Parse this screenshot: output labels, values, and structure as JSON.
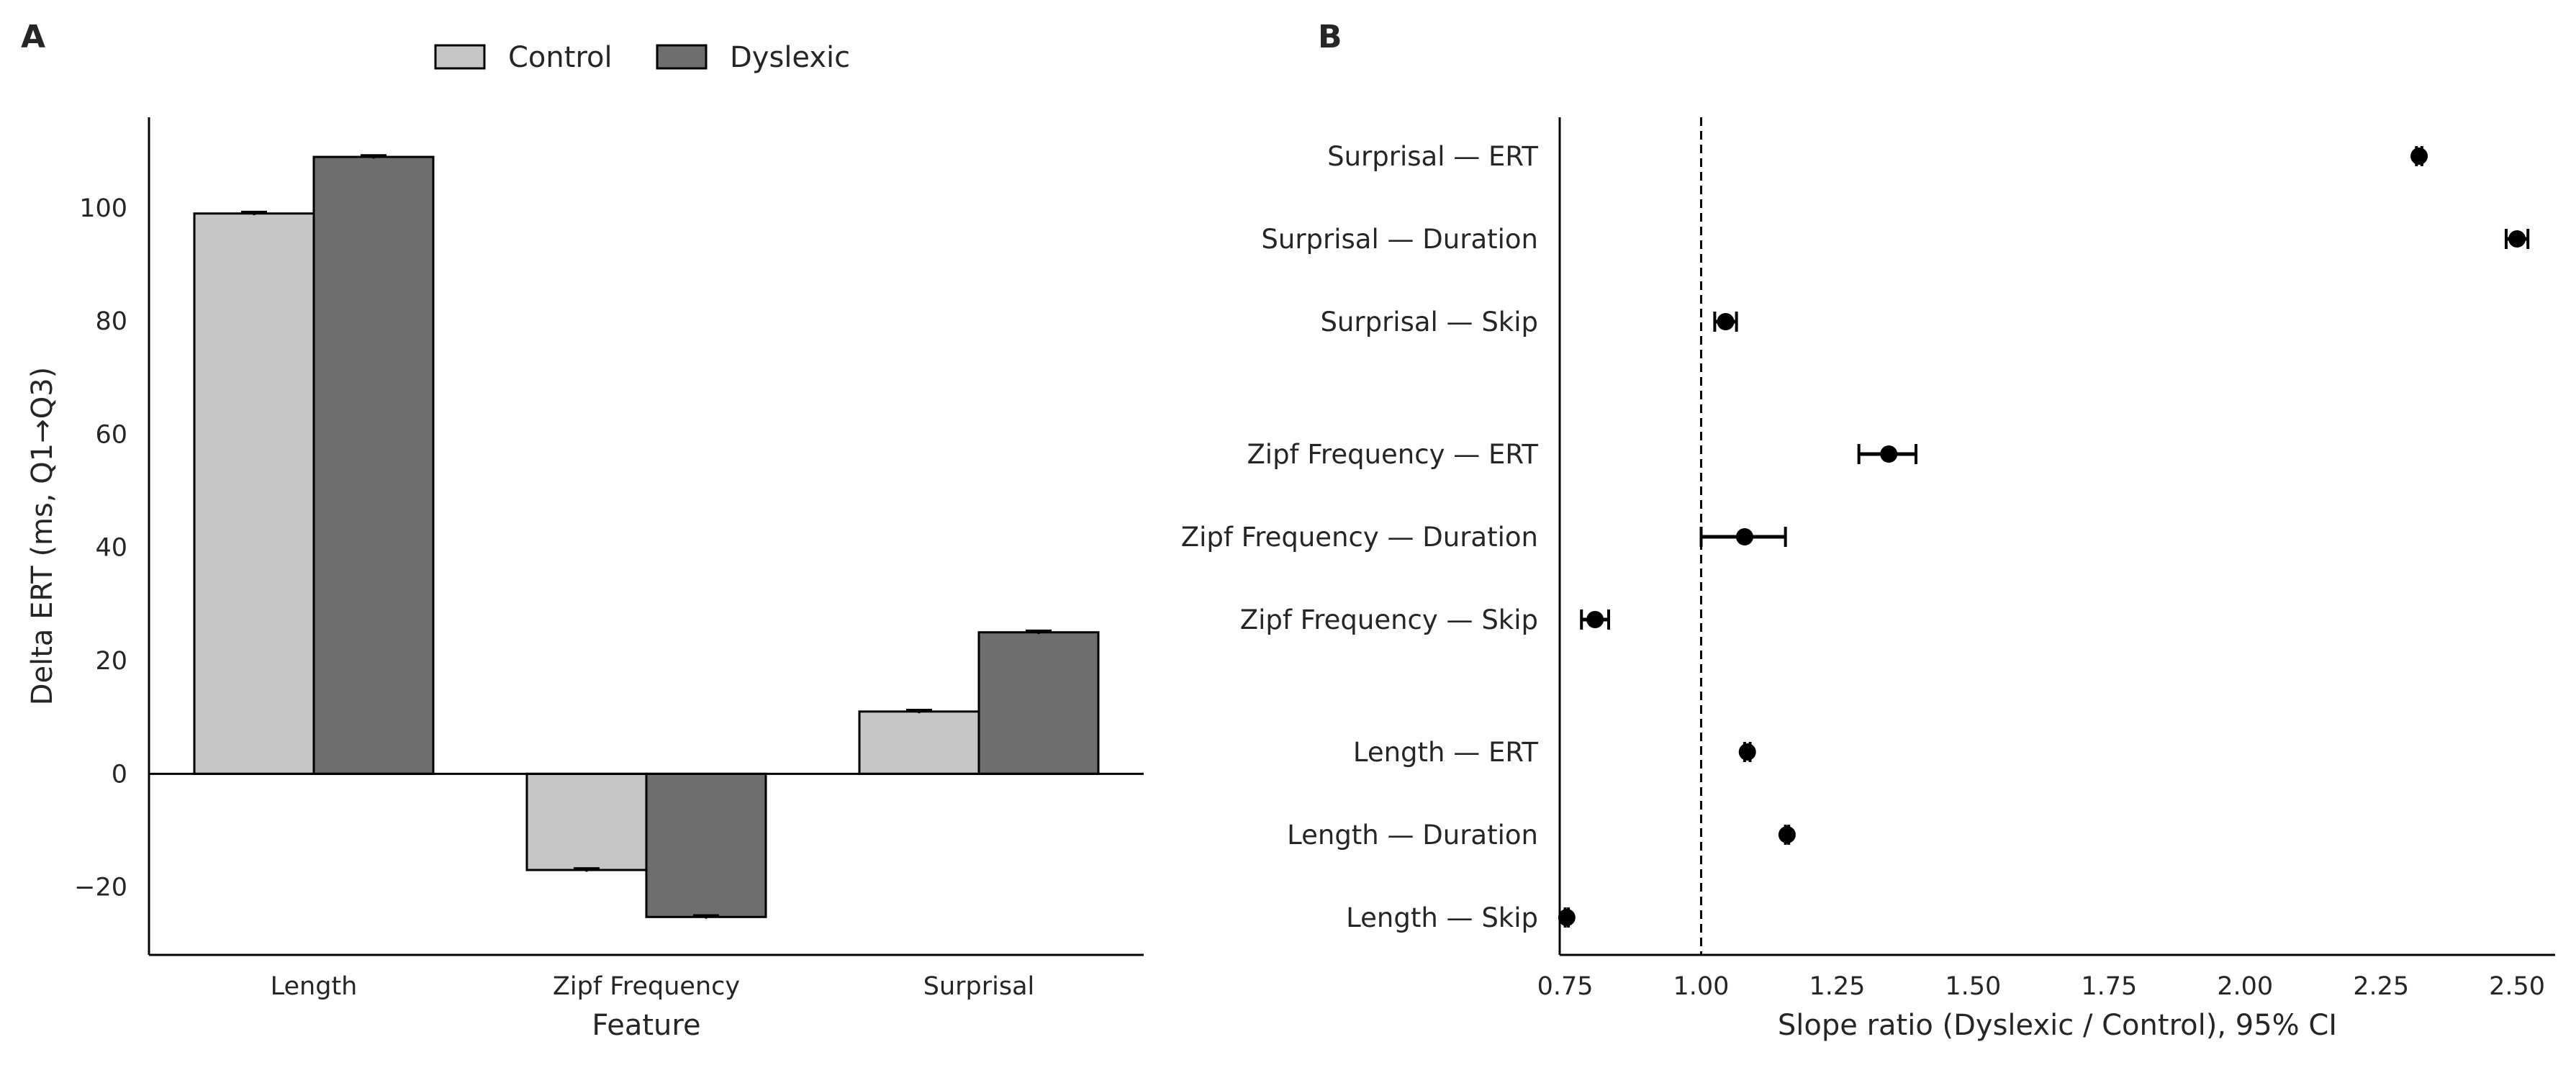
{
  "panels": {
    "a_letter": "A",
    "b_letter": "B"
  },
  "legend": {
    "items": [
      {
        "label": "Control",
        "color": "#c6c6c6"
      },
      {
        "label": "Dyslexic",
        "color": "#6e6e6e"
      }
    ]
  },
  "chart_data": [
    {
      "type": "bar",
      "panel": "A",
      "categories": [
        "Length",
        "Zipf Frequency",
        "Surprisal"
      ],
      "series": [
        {
          "name": "Control",
          "values": [
            99,
            -17,
            11
          ],
          "err": [
            0.3,
            0.3,
            0.3
          ],
          "color": "#c6c6c6"
        },
        {
          "name": "Dyslexic",
          "values": [
            109,
            -25.3,
            25
          ],
          "err": [
            0.3,
            0.3,
            0.3
          ],
          "color": "#6e6e6e"
        }
      ],
      "xlabel": "Feature",
      "ylabel": "Delta ERT (ms, Q1→Q3)",
      "ylim": [
        -32,
        116
      ],
      "yticks": [
        -20,
        0,
        20,
        40,
        60,
        80,
        100
      ],
      "ytick_labels": [
        "−20",
        "0",
        "20",
        "40",
        "60",
        "80",
        "100"
      ],
      "zero_line": true,
      "grid": false
    },
    {
      "type": "scatter",
      "panel": "B",
      "subtype": "forest",
      "categories": [
        "Surprisal — ERT",
        "Surprisal — Duration",
        "Surprisal — Skip",
        "Zipf Frequency — ERT",
        "Zipf Frequency — Duration",
        "Zipf Frequency — Skip",
        "Length — ERT",
        "Length — Duration",
        "Length — Skip"
      ],
      "y_slots": [
        0,
        1,
        2,
        3.6,
        4.6,
        5.6,
        7.2,
        8.2,
        9.2
      ],
      "values": [
        2.32,
        2.5,
        1.045,
        1.345,
        1.08,
        0.805,
        1.085,
        1.158,
        0.753
      ],
      "ci_low": [
        2.315,
        2.48,
        1.025,
        1.29,
        1.0,
        0.78,
        1.08,
        1.155,
        0.75
      ],
      "ci_high": [
        2.325,
        2.52,
        1.065,
        1.395,
        1.155,
        0.83,
        1.09,
        1.161,
        0.756
      ],
      "xlabel": "Slope ratio (Dyslexic / Control), 95% CI",
      "xlim": [
        0.74,
        2.57
      ],
      "xticks": [
        0.75,
        1.0,
        1.25,
        1.5,
        1.75,
        2.0,
        2.25,
        2.5
      ],
      "xtick_labels": [
        "0.75",
        "1.00",
        "1.25",
        "1.50",
        "1.75",
        "2.00",
        "2.25",
        "2.50"
      ],
      "reference_line": 1.0,
      "grid": false
    }
  ]
}
